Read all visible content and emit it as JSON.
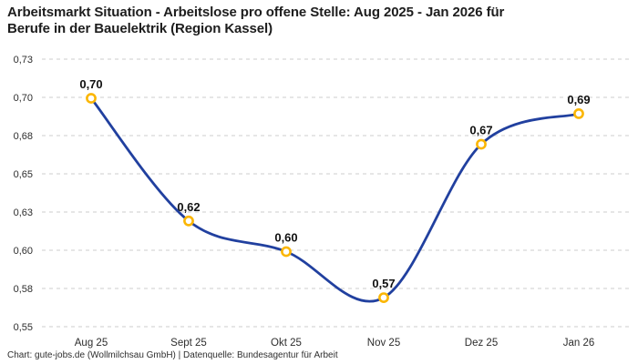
{
  "header": {
    "title_lines": [
      "Arbeitsmarkt Situation - Arbeitslose pro offene Stelle: Aug 2025 - Jan 2026 für",
      "Berufe in der Bauelektrik (Region Kassel)"
    ]
  },
  "footer": {
    "credit": "Chart: gute-jobs.de (Wollmilchsau GmbH) | Datenquelle: Bundesagentur für Arbeit"
  },
  "chart_data": {
    "type": "line",
    "title": "Arbeitsmarkt Situation - Arbeitslose pro offene Stelle: Aug 2025 - Jan 2026 für Berufe in der Bauelektrik (Region Kassel)",
    "categories": [
      "Aug 25",
      "Sept 25",
      "Okt 25",
      "Nov 25",
      "Dez 25",
      "Jan 26"
    ],
    "series": [
      {
        "name": "Arbeitslose pro offene Stelle",
        "values": [
          0.7,
          0.62,
          0.6,
          0.57,
          0.67,
          0.69
        ]
      }
    ],
    "point_labels": [
      "0,70",
      "0,62",
      "0,60",
      "0,57",
      "0,67",
      "0,69"
    ],
    "y_ticks": [
      "0,73",
      "0,70",
      "0,68",
      "0,65",
      "0,63",
      "0,60",
      "0,58",
      "0,55"
    ],
    "ylim": [
      0.55,
      0.73
    ],
    "xlabel": "",
    "ylabel": "",
    "legend": "none",
    "grid": "horizontal-dashed",
    "smooth": true,
    "colors": {
      "line": "#21409f",
      "marker_stroke": "#fbb604",
      "marker_fill": "#ffffff",
      "grid": "#cccccc",
      "label": "#111111"
    }
  }
}
